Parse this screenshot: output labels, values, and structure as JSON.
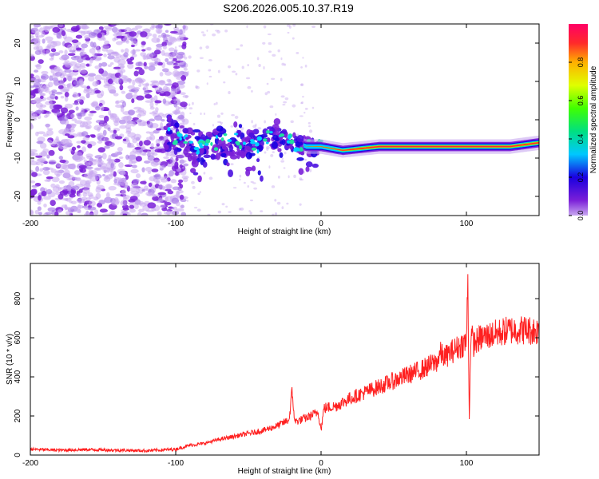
{
  "title": "S206.2026.005.10.37.R19",
  "chart_data": [
    {
      "type": "heatmap",
      "name": "spectrogram",
      "xlabel": "Height of straight line (km)",
      "ylabel": "Frequency (Hz)",
      "xlim": [
        -200,
        150
      ],
      "ylim": [
        -25,
        25
      ],
      "xticks": [
        -200,
        -100,
        0,
        100
      ],
      "yticks": [
        -20,
        -10,
        0,
        10,
        20
      ],
      "colorbar": {
        "label": "Normalized spectral amplitude",
        "range": [
          0.0,
          1.0
        ],
        "ticks": [
          0.0,
          0.2,
          0.4,
          0.6,
          0.8
        ],
        "colormap": [
          "#ffffff",
          "#c8a8f0",
          "#7a1fd8",
          "#1a00e0",
          "#00c8ff",
          "#00e080",
          "#40ff00",
          "#e0ff00",
          "#ffb000",
          "#ff2a2a",
          "#ff0066"
        ]
      },
      "features": {
        "noise_region_x": [
          -200,
          -105
        ],
        "track": [
          [
            -105,
            -3
          ],
          [
            -95,
            -6
          ],
          [
            -80,
            -7
          ],
          [
            -60,
            -5
          ],
          [
            -45,
            -7
          ],
          [
            -33,
            -4
          ],
          [
            -25,
            -5
          ],
          [
            -10,
            -7
          ],
          [
            0,
            -7
          ],
          [
            15,
            -8
          ],
          [
            40,
            -7
          ],
          [
            100,
            -7
          ],
          [
            130,
            -7
          ],
          [
            150,
            -6
          ]
        ]
      }
    },
    {
      "type": "line",
      "name": "snr",
      "xlabel": "Height of straight line (km)",
      "ylabel": "SNR (10 * v/v)",
      "xlim": [
        -200,
        150
      ],
      "ylim": [
        0,
        980
      ],
      "xticks": [
        -200,
        -100,
        0,
        100
      ],
      "yticks": [
        0,
        200,
        400,
        600,
        800
      ],
      "color": "#ff2020",
      "series": [
        {
          "name": "SNR",
          "x": [
            -200,
            -180,
            -160,
            -140,
            -120,
            -100,
            -90,
            -80,
            -70,
            -60,
            -50,
            -40,
            -30,
            -22,
            -20,
            -18,
            -10,
            -2,
            0,
            2,
            10,
            20,
            30,
            40,
            50,
            60,
            70,
            80,
            82,
            85,
            90,
            100,
            101,
            102,
            103,
            105,
            110,
            120,
            130,
            140,
            150
          ],
          "values": [
            30,
            25,
            28,
            25,
            22,
            30,
            50,
            60,
            80,
            95,
            110,
            125,
            150,
            180,
            320,
            170,
            190,
            220,
            130,
            240,
            250,
            290,
            320,
            350,
            380,
            410,
            440,
            480,
            520,
            500,
            530,
            580,
            900,
            180,
            620,
            570,
            600,
            620,
            640,
            640,
            635
          ]
        }
      ]
    }
  ]
}
